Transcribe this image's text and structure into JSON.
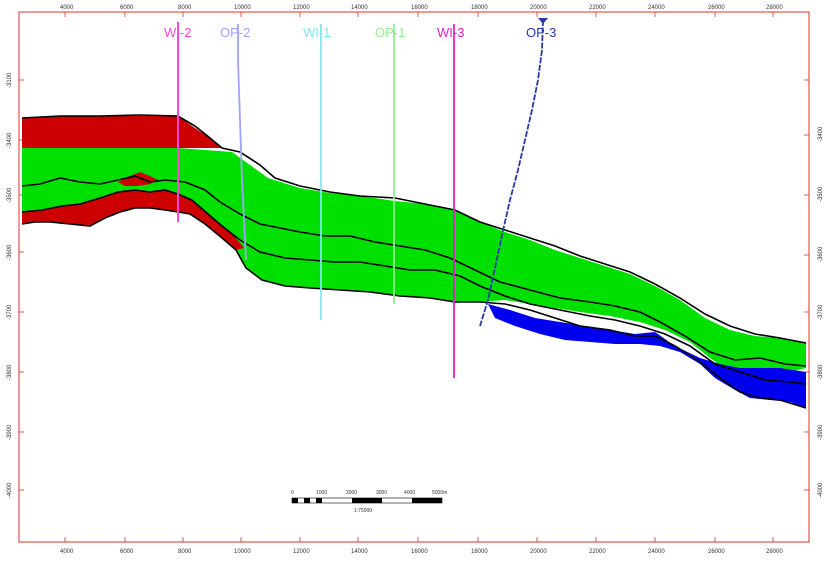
{
  "colors": {
    "frame": "#e0312d",
    "gas": "#cc0000",
    "oil": "#00e000",
    "water": "#0000ee",
    "horizon": "#000000"
  },
  "x_axis": {
    "ticks": [
      "4000",
      "6000",
      "8000",
      "10000",
      "12000",
      "14000",
      "16000",
      "18000",
      "20000",
      "22000",
      "24000",
      "26000",
      "28000"
    ]
  },
  "y_axis_left": {
    "ticks": [
      "-3100",
      "-3400",
      "-3500",
      "-3600",
      "-3700",
      "-3800",
      "-3900",
      "-4000"
    ]
  },
  "y_axis_right": {
    "ticks": [
      "-3400",
      "-3500",
      "-3600",
      "-3700",
      "-3800",
      "-3900",
      "-4000"
    ]
  },
  "wells": [
    {
      "name": "WI-2",
      "color": "#ff44dd",
      "icon": "well-trajectory"
    },
    {
      "name": "OP-2",
      "color": "#9fa3ff",
      "icon": "well-trajectory"
    },
    {
      "name": "WI-1",
      "color": "#7fe8f0",
      "icon": "well-trajectory"
    },
    {
      "name": "OP-1",
      "color": "#8ef08e",
      "icon": "well-trajectory"
    },
    {
      "name": "WI-3",
      "color": "#dd22cc",
      "icon": "well-trajectory"
    },
    {
      "name": "OP-3",
      "color": "#2a3aa8",
      "icon": "well-trajectory"
    }
  ],
  "scale_bar": {
    "ticks": [
      "0",
      "1000",
      "2000",
      "3000",
      "4000",
      "5000m"
    ],
    "ratio": "1:75000"
  },
  "zones": [
    "gas-zone",
    "oil-zone",
    "water-zone"
  ]
}
